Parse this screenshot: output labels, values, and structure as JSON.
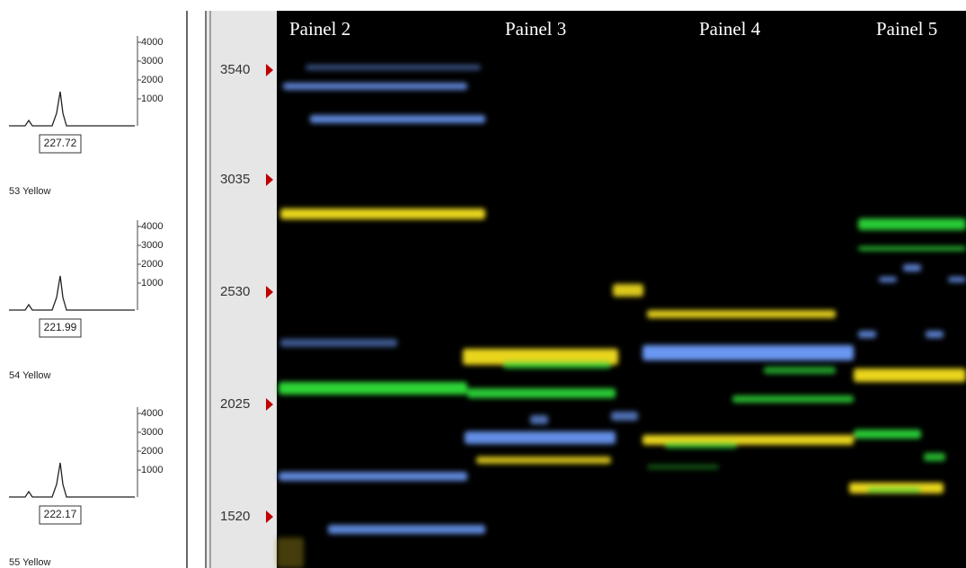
{
  "left_panel": {
    "traces": [
      {
        "axis_ticks": [
          4000,
          3000,
          2000,
          1000
        ],
        "peak_label": "227.72",
        "lane_label": "53 Yellow"
      },
      {
        "axis_ticks": [
          4000,
          3000,
          2000,
          1000
        ],
        "peak_label": "221.99",
        "lane_label": "54 Yellow"
      },
      {
        "axis_ticks": [
          4000,
          3000,
          2000,
          1000
        ],
        "peak_label": "222.17",
        "lane_label": "55 Yellow"
      }
    ]
  },
  "ruler": {
    "labels": [
      3540,
      3035,
      2530,
      2025,
      1520
    ]
  },
  "gel": {
    "panels": [
      "Painel 2",
      "Painel 3",
      "Painel 4",
      "Painel 5"
    ]
  }
}
